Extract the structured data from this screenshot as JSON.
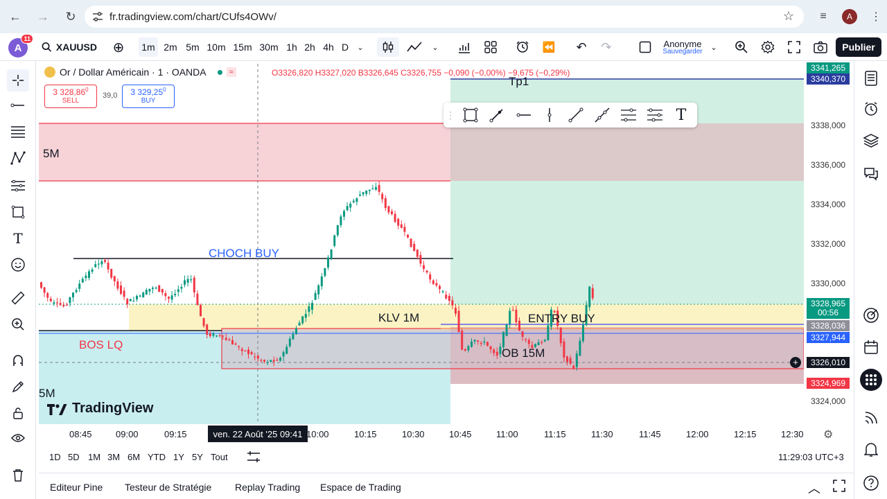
{
  "browser": {
    "url": "fr.tradingview.com/chart/CUfs4OWv/",
    "profile_initial": "A"
  },
  "toolbar": {
    "notifications": "11",
    "avatar_initial": "A",
    "symbol": "XAUUSD",
    "intervals": [
      "1m",
      "2m",
      "5m",
      "10m",
      "15m",
      "30m",
      "1h",
      "2h",
      "4h",
      "D"
    ],
    "selected_interval": "1m",
    "user_name": "Anonyme",
    "save_label": "Sauvegarder",
    "publish_label": "Publier"
  },
  "legend": {
    "title": "Or / Dollar Américain · 1 · OANDA",
    "ohlc": "O3326,820 H3327,020 B3326,645 C3326,755 −0,090 (−0,00%) −9,675 (−0,29%)",
    "sell_price": "3 328,86",
    "sell_sup": "0",
    "sell_label": "SELL",
    "spread": "39,0",
    "buy_price": "3 329,25",
    "buy_sup": "0",
    "buy_label": "BUY"
  },
  "annotations": {
    "tp": "Tp1",
    "zone_5m_top": "5M",
    "choch": "CHOCH BUY",
    "klv": "KLV 1M",
    "entry": "ENTRY BUY",
    "bos": "BOS LQ",
    "ob": "OB 15M",
    "zone_5m_bottom": "5M"
  },
  "watermark": "TradingView",
  "price_axis": {
    "ticks": [
      "3338,000",
      "3336,000",
      "3334,000",
      "3332,000",
      "3330,000",
      "3324,000"
    ],
    "tag_top1": "3341,265",
    "tag_top2": "3340,370",
    "tag_price": "3328,965",
    "tag_countdown": "00:56",
    "tag_entry": "3328,036",
    "tag_blue": "3327,944",
    "tag_cross": "3326,010",
    "tag_stop": "3324,969"
  },
  "time_axis": {
    "ticks": [
      "08:45",
      "09:00",
      "09:15",
      "10:00",
      "10:15",
      "10:30",
      "10:45",
      "11:00",
      "11:15",
      "11:30",
      "11:45",
      "12:00",
      "12:15",
      "12:30"
    ],
    "crosshair": "ven. 22 Août '25   09:41"
  },
  "range_bar": {
    "ranges": [
      "1D",
      "5D",
      "1M",
      "3M",
      "6M",
      "YTD",
      "1Y",
      "5Y",
      "Tout"
    ],
    "clock": "11:29:03 UTC+3"
  },
  "bottom_tabs": [
    "Editeur Pine",
    "Testeur de Stratégie",
    "Replay Trading",
    "Espace de Trading"
  ],
  "colors": {
    "up": "#089981",
    "down": "#f23645",
    "zone_red": "#f7d3d8",
    "zone_teal": "#c9eef0",
    "zone_green": "#d2efe3",
    "zone_yellow": "#fbf3c4"
  }
}
